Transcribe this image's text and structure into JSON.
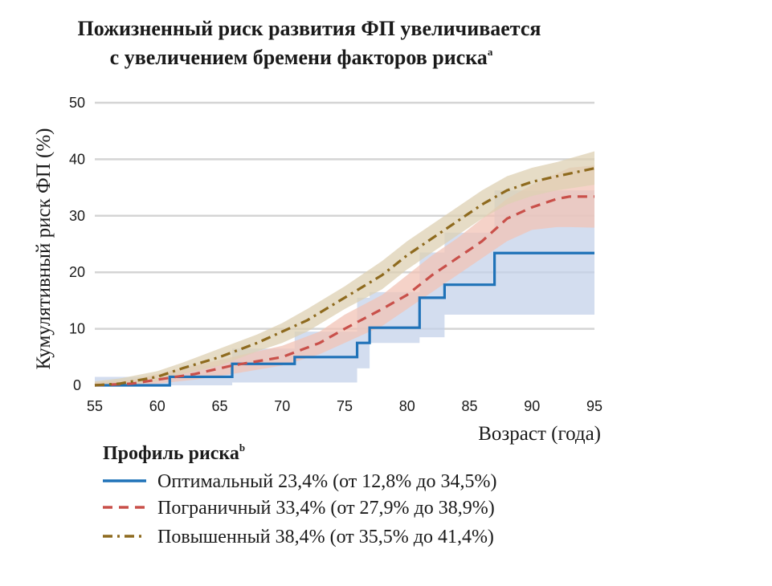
{
  "colors": {
    "optimal": "#1f72b8",
    "borderline": "#c9504a",
    "elevated": "#8e6a1e",
    "optimal_band": "#c4d1ea",
    "borderline_band": "#f1c3b5",
    "elevated_band": "#ddd0b3",
    "grid": "#d4d4d4"
  },
  "chart_data": {
    "type": "line",
    "title": [
      "Пожизненный риск развития ФП увеличивается",
      "с увеличением бремени факторов риска"
    ],
    "title_superscript": "a",
    "xlabel": "Возраст (года)",
    "ylabel": "Кумулятивный риск ФП (%)",
    "xlim": [
      55,
      95
    ],
    "ylim": [
      0,
      50
    ],
    "x_ticks": [
      "55",
      "60",
      "65",
      "70",
      "75",
      "80",
      "85",
      "90",
      "95"
    ],
    "y_ticks": [
      "0",
      "10",
      "20",
      "30",
      "40",
      "50"
    ],
    "grid": "horizontal",
    "legend": {
      "title": "Профиль риска",
      "title_superscript": "b",
      "placement": "bottom"
    },
    "series": [
      {
        "name": "Оптимальный",
        "style": "solid",
        "summary": "23,4% (от 12,8% до 34,5%)",
        "x": [
          55,
          57,
          61,
          62,
          65,
          66,
          71,
          76,
          77,
          81,
          83,
          87,
          95
        ],
        "y": [
          0,
          0,
          1.5,
          1.5,
          1.5,
          3.8,
          5.0,
          7.5,
          10.2,
          15.5,
          17.8,
          23.4,
          23.4
        ],
        "ci_lower": [
          0,
          0,
          0,
          0,
          0,
          0,
          0.5,
          0.5,
          3.0,
          7.5,
          8.5,
          12.5,
          12.5
        ],
        "ci_upper": [
          1.5,
          1.5,
          2.5,
          3.5,
          4.5,
          6.5,
          9.5,
          15.5,
          16.5,
          23.5,
          27.0,
          34.5,
          34.5
        ],
        "step": true
      },
      {
        "name": "Пограничный",
        "style": "dashed",
        "summary": "33,4% (от 27,9% до 38,9%)",
        "x": [
          55,
          58,
          60,
          63,
          66,
          70,
          73,
          75,
          78,
          80,
          82,
          84,
          86,
          88,
          90,
          92,
          93,
          95
        ],
        "y": [
          0,
          0.3,
          1.0,
          2.0,
          3.5,
          5.0,
          7.5,
          10.0,
          13.5,
          16.0,
          19.5,
          22.5,
          25.5,
          29.5,
          31.5,
          33.0,
          33.4,
          33.4
        ],
        "ci_lower": [
          0,
          0,
          0.3,
          1.0,
          2.0,
          3.5,
          5.5,
          7.5,
          10.5,
          13.5,
          16.5,
          19.5,
          22.5,
          25.5,
          27.5,
          28.0,
          28.0,
          27.9
        ],
        "ci_upper": [
          0.5,
          1.0,
          2.0,
          3.5,
          5.0,
          7.0,
          9.5,
          12.5,
          16.0,
          19.5,
          23.0,
          26.0,
          29.5,
          33.0,
          35.5,
          37.5,
          38.5,
          38.9
        ],
        "step": false
      },
      {
        "name": "Повышенный",
        "style": "dashdot",
        "summary": "38,4% (от 35,5% до 41,4%)",
        "x": [
          55,
          57,
          60,
          62,
          65,
          68,
          70,
          72,
          75,
          78,
          80,
          82,
          84,
          86,
          88,
          90,
          92,
          95
        ],
        "y": [
          0,
          0.3,
          1.5,
          3.0,
          5.0,
          7.5,
          9.5,
          11.5,
          15.5,
          19.5,
          23.0,
          26.0,
          29.0,
          32.0,
          34.5,
          36.0,
          37.0,
          38.4
        ],
        "ci_lower": [
          0,
          0,
          0.7,
          2.0,
          3.5,
          6.0,
          7.5,
          9.5,
          13.5,
          17.0,
          20.5,
          23.5,
          26.5,
          29.5,
          32.0,
          33.5,
          34.5,
          35.5
        ],
        "ci_upper": [
          0.7,
          1.2,
          2.5,
          4.0,
          6.5,
          9.0,
          11.0,
          13.5,
          17.5,
          22.0,
          25.5,
          28.5,
          31.5,
          34.5,
          37.0,
          38.5,
          39.5,
          41.4
        ],
        "step": false
      }
    ]
  }
}
